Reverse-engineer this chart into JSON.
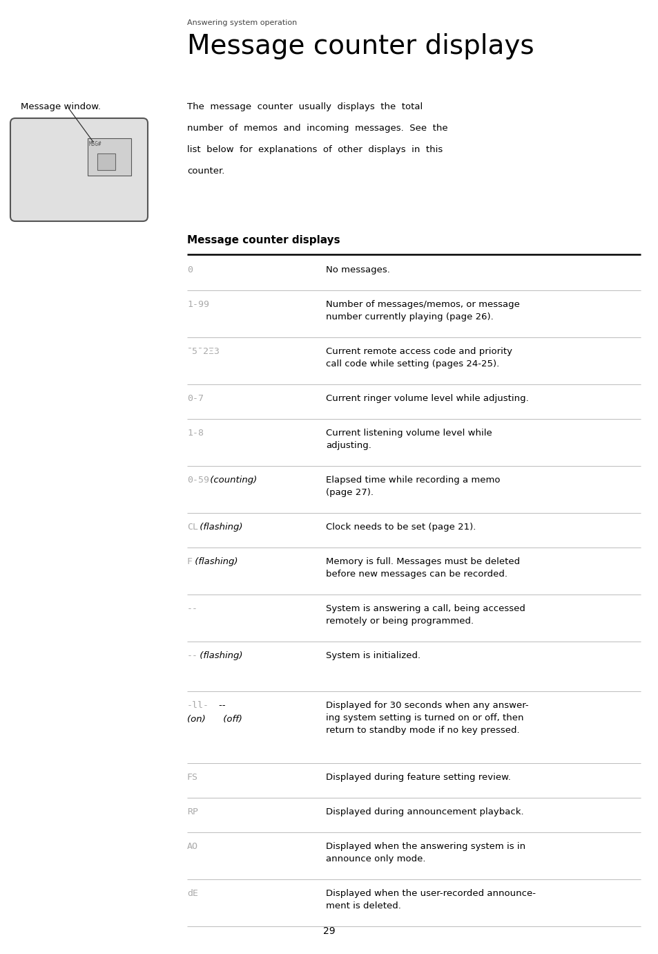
{
  "bg_color": "#ffffff",
  "page_number": "29",
  "section_label": "Answering system operation",
  "title": "Message counter displays",
  "left_label": "Message window.",
  "table_header": "Message counter displays",
  "rows": [
    {
      "display_lcd": "0",
      "display_italic": "",
      "display_line2_lcd": "",
      "display_line2_italic": "",
      "description": "No messages.",
      "desc_lines": 1,
      "extra_space_after": false
    },
    {
      "display_lcd": "1-99",
      "display_italic": "",
      "display_line2_lcd": "",
      "display_line2_italic": "",
      "description": "Number of messages/memos, or message\nnumber currently playing (page 26).",
      "desc_lines": 2,
      "extra_space_after": false
    },
    {
      "display_lcd": "¯5¯2Ξ3",
      "display_italic": "",
      "display_line2_lcd": "",
      "display_line2_italic": "",
      "description": "Current remote access code and priority\ncall code while setting (pages 24-25).",
      "desc_lines": 2,
      "extra_space_after": false
    },
    {
      "display_lcd": "0-7",
      "display_italic": "",
      "display_line2_lcd": "",
      "display_line2_italic": "",
      "description": "Current ringer volume level while adjusting.",
      "desc_lines": 1,
      "extra_space_after": false
    },
    {
      "display_lcd": "1-8",
      "display_italic": "",
      "display_line2_lcd": "",
      "display_line2_italic": "",
      "description": "Current listening volume level while\nadjusting.",
      "desc_lines": 2,
      "extra_space_after": false
    },
    {
      "display_lcd": "0-59",
      "display_italic": " (counting)",
      "display_line2_lcd": "",
      "display_line2_italic": "",
      "description": "Elapsed time while recording a memo\n(page 27).",
      "desc_lines": 2,
      "extra_space_after": false
    },
    {
      "display_lcd": "CL",
      "display_italic": " (flashing)",
      "display_line2_lcd": "",
      "display_line2_italic": "",
      "description": "Clock needs to be set (page 21).",
      "desc_lines": 1,
      "extra_space_after": false
    },
    {
      "display_lcd": "F",
      "display_italic": " (flashing)",
      "display_line2_lcd": "",
      "display_line2_italic": "",
      "description": "Memory is full. Messages must be deleted\nbefore new messages can be recorded.",
      "desc_lines": 2,
      "extra_space_after": false
    },
    {
      "display_lcd": "--",
      "display_italic": "",
      "display_line2_lcd": "",
      "display_line2_italic": "",
      "description": "System is answering a call, being accessed\nremotely or being programmed.",
      "desc_lines": 2,
      "extra_space_after": false
    },
    {
      "display_lcd": "--",
      "display_italic": " (flashing)",
      "display_line2_lcd": "",
      "display_line2_italic": "",
      "description": "System is initialized.",
      "desc_lines": 1,
      "extra_space_after": true
    },
    {
      "display_lcd": "-ll-",
      "display_italic": "    --",
      "display_line2_lcd": "",
      "display_line2_italic": "(on)      (off)",
      "description": "Displayed for 30 seconds when any answer-\ning system setting is turned on or off, then\nreturn to standby mode if no key pressed.",
      "desc_lines": 3,
      "extra_space_after": false
    },
    {
      "display_lcd": "FS",
      "display_italic": "",
      "display_line2_lcd": "",
      "display_line2_italic": "",
      "description": "Displayed during feature setting review.",
      "desc_lines": 1,
      "extra_space_after": false
    },
    {
      "display_lcd": "RP",
      "display_italic": "",
      "display_line2_lcd": "",
      "display_line2_italic": "",
      "description": "Displayed during announcement playback.",
      "desc_lines": 1,
      "extra_space_after": false
    },
    {
      "display_lcd": "AO",
      "display_italic": "",
      "display_line2_lcd": "",
      "display_line2_italic": "",
      "description": "Displayed when the answering system is in\nannounce only mode.",
      "desc_lines": 2,
      "extra_space_after": false
    },
    {
      "display_lcd": "dE",
      "display_italic": "",
      "display_line2_lcd": "",
      "display_line2_italic": "",
      "description": "Displayed when the user-recorded announce-\nment is deleted.",
      "desc_lines": 2,
      "extra_space_after": false
    }
  ]
}
